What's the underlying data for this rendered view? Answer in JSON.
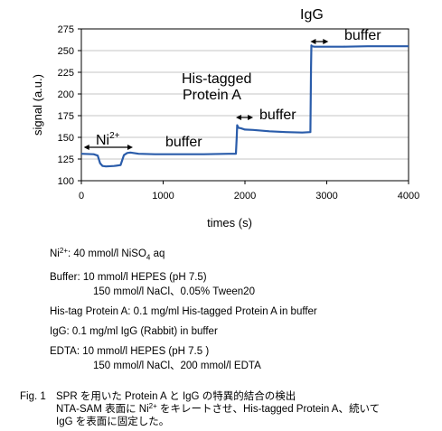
{
  "chart_data": {
    "type": "line",
    "xlabel": "times (s)",
    "ylabel": "signal (a.u.)",
    "xlim": [
      0,
      4000
    ],
    "ylim": [
      100,
      275
    ],
    "xticks": [
      0,
      1000,
      2000,
      3000,
      4000
    ],
    "yticks": [
      100,
      125,
      150,
      175,
      200,
      225,
      250,
      275
    ],
    "line_color": "#2a5caa",
    "series": [
      {
        "x": [
          0,
          150,
          200,
          230,
          260,
          300,
          400,
          480,
          500,
          520,
          560,
          600,
          700,
          900,
          1200,
          1500,
          1800,
          1890,
          1900,
          1905,
          1920,
          1950,
          2000,
          2100,
          2300,
          2500,
          2700,
          2800,
          2808,
          2812,
          2820,
          2850,
          3000,
          3200,
          3500,
          3800,
          4000
        ],
        "y": [
          131,
          130.5,
          129,
          120,
          117,
          116.5,
          117,
          118,
          124,
          129.5,
          132,
          132.5,
          131,
          130.5,
          130.5,
          130.5,
          131,
          131,
          150,
          164,
          161,
          160.5,
          159,
          158.5,
          157,
          156,
          155.5,
          156,
          230,
          256,
          255,
          254.5,
          254.5,
          254.5,
          255,
          255,
          255
        ]
      }
    ],
    "annotations": [
      {
        "text": "Ni",
        "sup": "2+",
        "arrow_x": [
          30,
          630
        ]
      },
      {
        "text": "buffer"
      },
      {
        "text_lines": [
          "His-tagged",
          "Protein A"
        ]
      },
      {
        "text": "buffer",
        "arrow_x": [
          1890,
          2100
        ]
      },
      {
        "text": "buffer"
      },
      {
        "text": "IgG",
        "arrow_x": [
          2800,
          3020
        ]
      },
      {
        "text": "buffer"
      }
    ]
  },
  "notes": {
    "ni_prefix": "Ni",
    "ni_sup": "2+",
    "ni_rest": ": 40 mmol/l NiSO",
    "ni_sub": "4",
    "ni_end": " aq",
    "buffer_1": "Buffer: 10 mmol/l HEPES (pH 7.5)",
    "buffer_2": "150 mmol/l NaCl、0.05% Tween20",
    "histag": "His-tag Protein A:  0.1 mg/ml His-tagged Protein A in buffer",
    "igg": "IgG: 0.1 mg/ml IgG (Rabbit) in buffer",
    "edta_1": "EDTA: 10 mmol/l HEPES  (pH 7.5 )",
    "edta_2": "150 mmol/l NaCl、200 mmol/l EDTA"
  },
  "caption": {
    "number": "Fig. 1",
    "line1": "SPR を用いた Protein A と IgG の特異的結合の検出",
    "line2_a": "NTA-SAM 表面に Ni",
    "line2_sup": "2+",
    "line2_b": " をキレートさせ、His-tagged Protein A、続いて",
    "line3": "IgG を表面に固定した。"
  }
}
